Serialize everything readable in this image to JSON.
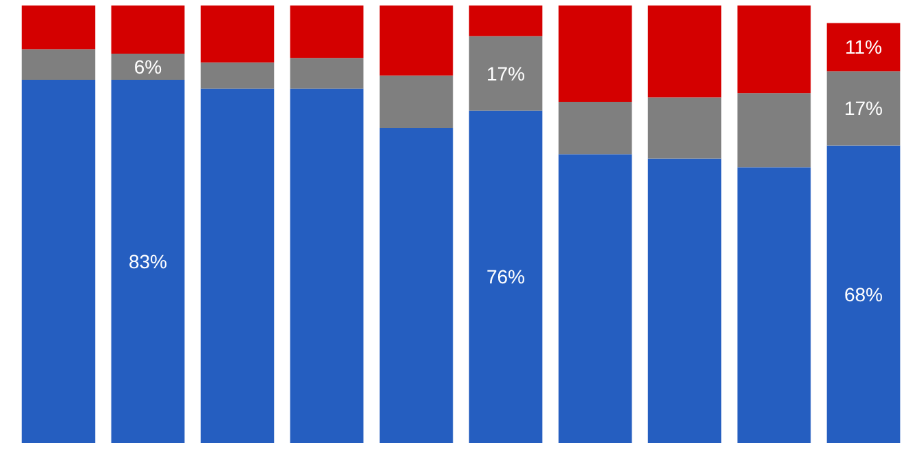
{
  "chart_data": {
    "type": "bar",
    "stacked": true,
    "categories": [
      null,
      null,
      null,
      null,
      null,
      null,
      null,
      null,
      null,
      null
    ],
    "series": [
      {
        "color": "#255ec0",
        "values": [
          83,
          83,
          81,
          81,
          72,
          76,
          66,
          65,
          63,
          68
        ],
        "value_labels": [
          null,
          "83%",
          null,
          null,
          null,
          "76%",
          null,
          null,
          null,
          "68%"
        ]
      },
      {
        "color": "#7f7f7f",
        "values": [
          7,
          6,
          6,
          7,
          12,
          17,
          12,
          14,
          17,
          17
        ],
        "value_labels": [
          null,
          "6%",
          null,
          null,
          null,
          "17%",
          null,
          null,
          null,
          "17%"
        ]
      },
      {
        "color": "#d40000",
        "values": [
          10,
          11,
          13,
          12,
          16,
          7,
          22,
          21,
          20,
          11
        ],
        "value_labels": [
          null,
          null,
          null,
          null,
          null,
          null,
          null,
          null,
          null,
          "11%"
        ]
      }
    ]
  }
}
